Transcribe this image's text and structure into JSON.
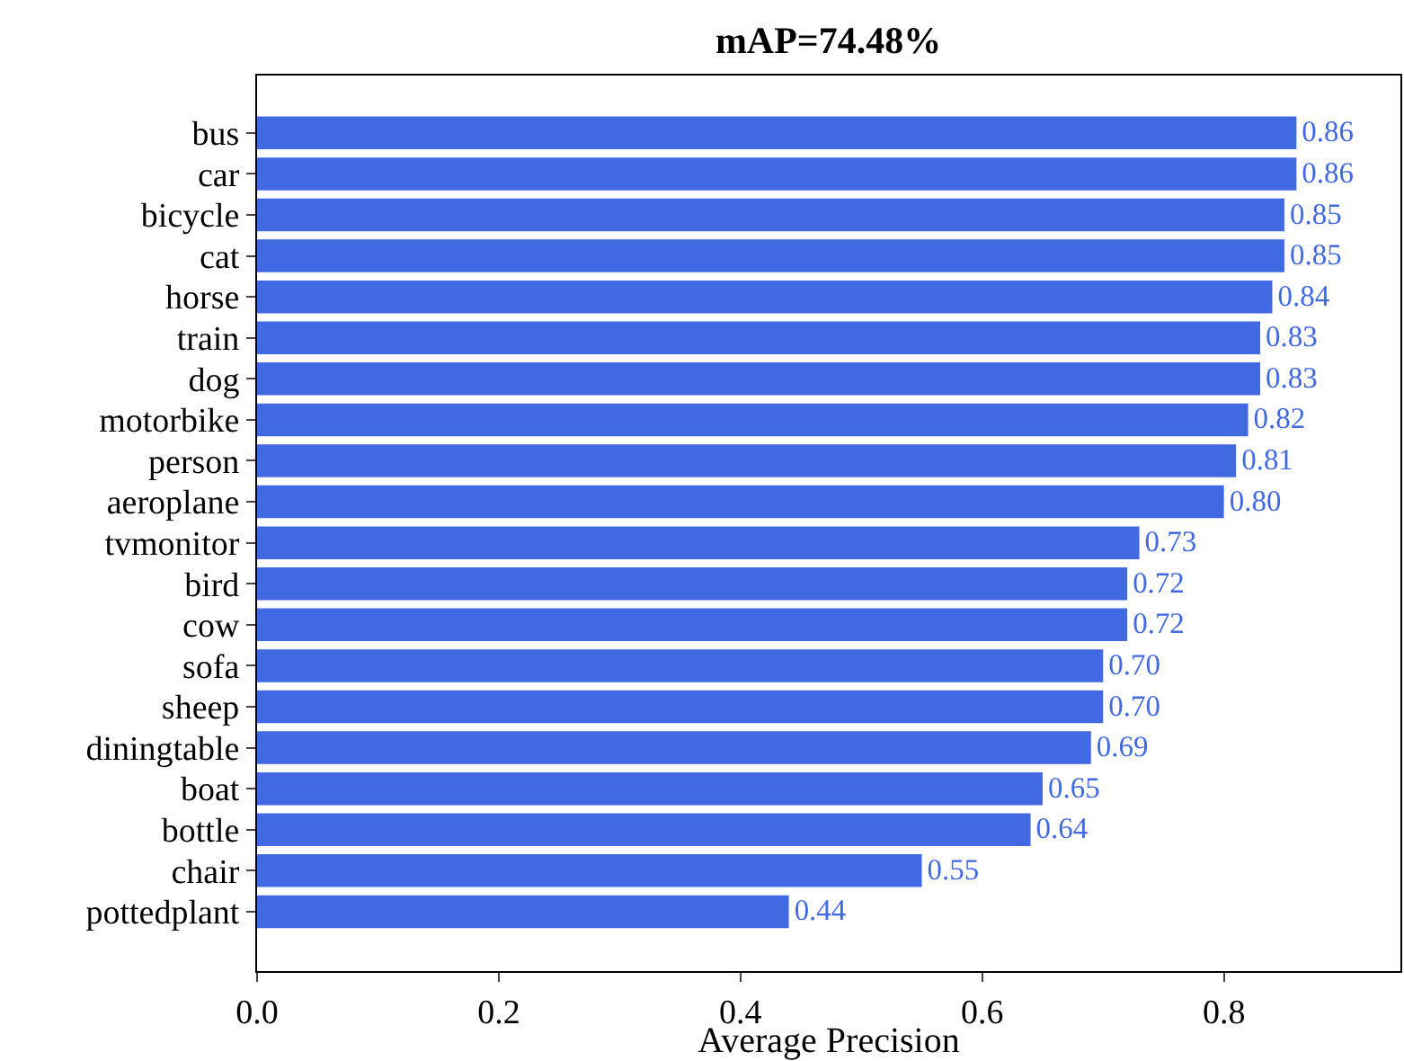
{
  "chart_data": {
    "type": "bar",
    "orientation": "horizontal",
    "title": "mAP=74.48%",
    "xlabel": "Average Precision",
    "categories": [
      "bus",
      "car",
      "bicycle",
      "cat",
      "horse",
      "train",
      "dog",
      "motorbike",
      "person",
      "aeroplane",
      "tvmonitor",
      "bird",
      "cow",
      "sofa",
      "sheep",
      "diningtable",
      "boat",
      "bottle",
      "chair",
      "pottedplant"
    ],
    "values": [
      0.86,
      0.86,
      0.85,
      0.85,
      0.84,
      0.83,
      0.83,
      0.82,
      0.81,
      0.8,
      0.73,
      0.72,
      0.72,
      0.7,
      0.7,
      0.69,
      0.65,
      0.64,
      0.55,
      0.44
    ],
    "value_labels": [
      "0.86",
      "0.86",
      "0.85",
      "0.85",
      "0.84",
      "0.83",
      "0.83",
      "0.82",
      "0.81",
      "0.80",
      "0.73",
      "0.72",
      "0.72",
      "0.70",
      "0.70",
      "0.69",
      "0.65",
      "0.64",
      "0.55",
      "0.44"
    ],
    "color": "#4169e1",
    "xlim": [
      0,
      0.946
    ],
    "xticks": [
      {
        "value": 0,
        "label": "0.0"
      },
      {
        "value": 0.2,
        "label": "0.2"
      },
      {
        "value": 0.4,
        "label": "0.4"
      },
      {
        "value": 0.6,
        "label": "0.6"
      },
      {
        "value": 0.8,
        "label": "0.8"
      }
    ],
    "grid": false
  }
}
